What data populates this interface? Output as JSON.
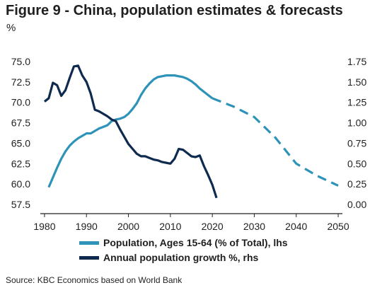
{
  "header": {
    "title": "Figure 9 - China, population estimates & forecasts",
    "unit": "%"
  },
  "source": "Source: KBC Economics based on World Bank",
  "colors": {
    "working_age": "#2e93b8",
    "growth": "#0e2a4f",
    "axis": "#222222"
  },
  "chart_data": {
    "type": "line",
    "title": "Figure 9 - China, population estimates & forecasts",
    "xlabel": "",
    "ylabel": "%",
    "x_ticks": [
      1980,
      1990,
      2000,
      2010,
      2020,
      2030,
      2040,
      2050
    ],
    "xlim": [
      1979,
      2051
    ],
    "left_axis": {
      "ylim": [
        57.5,
        75.0
      ],
      "ticks": [
        "57.5",
        "60.0",
        "62.5",
        "65.0",
        "67.5",
        "70.0",
        "72.5",
        "75.0"
      ]
    },
    "right_axis": {
      "ylim": [
        0.0,
        1.75
      ],
      "ticks": [
        "0.00",
        "0.25",
        "0.50",
        "0.75",
        "1.00",
        "1.25",
        "1.50",
        "1.75"
      ]
    },
    "legend_position": "bottom",
    "series": [
      {
        "name": "Population, Ages 15-64 (% of Total), lhs",
        "axis": "left",
        "style": "solid",
        "x": [
          1981,
          1982,
          1983,
          1984,
          1985,
          1986,
          1987,
          1988,
          1989,
          1990,
          1991,
          1992,
          1993,
          1994,
          1995,
          1996,
          1997,
          1998,
          1999,
          2000,
          2001,
          2002,
          2003,
          2004,
          2005,
          2006,
          2007,
          2008,
          2009,
          2010,
          2011,
          2012,
          2013,
          2014,
          2015,
          2016,
          2017,
          2018,
          2019,
          2020
        ],
        "values": [
          59.6,
          60.8,
          62.0,
          63.1,
          64.0,
          64.7,
          65.2,
          65.6,
          65.9,
          66.2,
          66.2,
          66.5,
          66.8,
          67.0,
          67.2,
          67.7,
          67.9,
          68.0,
          68.2,
          68.6,
          69.2,
          69.9,
          70.9,
          71.7,
          72.3,
          72.8,
          73.1,
          73.2,
          73.3,
          73.3,
          73.3,
          73.2,
          73.1,
          72.9,
          72.6,
          72.2,
          71.7,
          71.3,
          70.9,
          70.5
        ]
      },
      {
        "name": "Population, Ages 15-64 (% of Total), lhs (forecast)",
        "axis": "left",
        "style": "dashed",
        "x": [
          2020,
          2025,
          2030,
          2035,
          2040,
          2045,
          2050
        ],
        "values": [
          70.5,
          69.5,
          68.2,
          65.7,
          62.5,
          61.0,
          59.8
        ]
      },
      {
        "name": "Annual population growth %, rhs",
        "axis": "right",
        "style": "solid",
        "x": [
          1980,
          1981,
          1982,
          1983,
          1984,
          1985,
          1986,
          1987,
          1988,
          1989,
          1990,
          1991,
          1992,
          1993,
          1994,
          1995,
          1996,
          1997,
          1998,
          1999,
          2000,
          2001,
          2002,
          2003,
          2004,
          2005,
          2006,
          2007,
          2008,
          2009,
          2010,
          2011,
          2012,
          2013,
          2014,
          2015,
          2016,
          2017,
          2018,
          2019,
          2020,
          2021
        ],
        "values": [
          1.26,
          1.3,
          1.49,
          1.46,
          1.33,
          1.4,
          1.55,
          1.69,
          1.7,
          1.58,
          1.5,
          1.36,
          1.16,
          1.14,
          1.11,
          1.08,
          1.04,
          1.02,
          0.92,
          0.83,
          0.74,
          0.68,
          0.62,
          0.59,
          0.59,
          0.57,
          0.55,
          0.54,
          0.52,
          0.51,
          0.5,
          0.56,
          0.68,
          0.67,
          0.63,
          0.59,
          0.58,
          0.6,
          0.47,
          0.36,
          0.24,
          0.08
        ]
      }
    ]
  },
  "legend": {
    "items": [
      {
        "label": "Population, Ages 15-64 (% of Total), lhs"
      },
      {
        "label": "Annual population growth %, rhs"
      }
    ]
  }
}
